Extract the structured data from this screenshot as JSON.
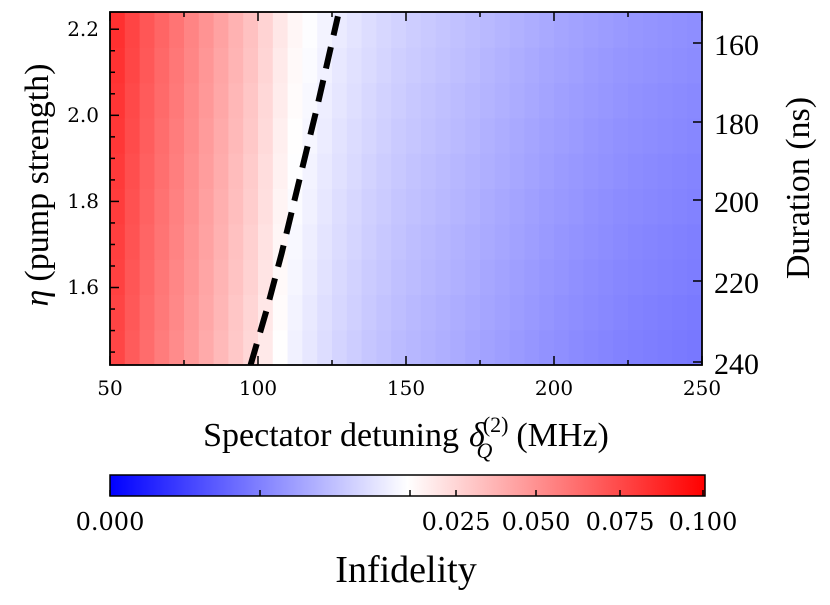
{
  "chart_data": {
    "type": "heatmap",
    "x": {
      "label": "Spectator detuning",
      "symbol": "δ",
      "subscript": "Q",
      "superscript": "(2)",
      "unit": "(MHz)",
      "range": [
        50,
        250
      ],
      "ticks": [
        50,
        100,
        150,
        200,
        250
      ],
      "tick_labels": [
        "50",
        "100",
        "150",
        "200",
        "250"
      ]
    },
    "y_left": {
      "symbol": "η",
      "label": "(pump strength)",
      "range": [
        1.42,
        2.24
      ],
      "ticks": [
        1.6,
        1.8,
        2.0,
        2.2
      ],
      "tick_labels": [
        "1.6",
        "1.8",
        "2.0",
        "2.2"
      ]
    },
    "y_right": {
      "label": "Duration (ns)",
      "ticks": [
        160,
        180,
        200,
        220,
        240
      ],
      "tick_labels": [
        "160",
        "180",
        "200",
        "220",
        "240"
      ]
    },
    "colorbar": {
      "label": "Infidelity",
      "colormap": "bwr",
      "low_color": "#0000ff",
      "mid_color": "#ffffff",
      "high_color": "#ff0000",
      "ticks": [
        0.0,
        0.025,
        0.05,
        0.075,
        0.1
      ],
      "tick_labels": [
        "0.000",
        "0.025",
        "0.050",
        "0.075",
        "0.100"
      ]
    },
    "grid": {
      "nx": 40,
      "ny": 10
    },
    "field_model": {
      "description": "approximate color level (0=blue, 0.5=white, 1=red) across detuning",
      "detuning": [
        50,
        60,
        80,
        100,
        110,
        125,
        140,
        150,
        175,
        200,
        225,
        250
      ],
      "level": [
        0.88,
        0.8,
        0.68,
        0.56,
        0.48,
        0.42,
        0.38,
        0.36,
        0.32,
        0.28,
        0.25,
        0.23
      ],
      "eta_shift_per_unit_eta": 0.06
    },
    "boundary_curve": {
      "style": "dashed",
      "color": "#000000",
      "points": [
        {
          "detuning": 97.5,
          "eta": 1.42
        },
        {
          "detuning": 103,
          "eta": 1.55
        },
        {
          "detuning": 108,
          "eta": 1.68
        },
        {
          "detuning": 114,
          "eta": 1.85
        },
        {
          "detuning": 120,
          "eta": 2.02
        },
        {
          "detuning": 125,
          "eta": 2.17
        },
        {
          "detuning": 127,
          "eta": 2.23
        }
      ]
    }
  }
}
